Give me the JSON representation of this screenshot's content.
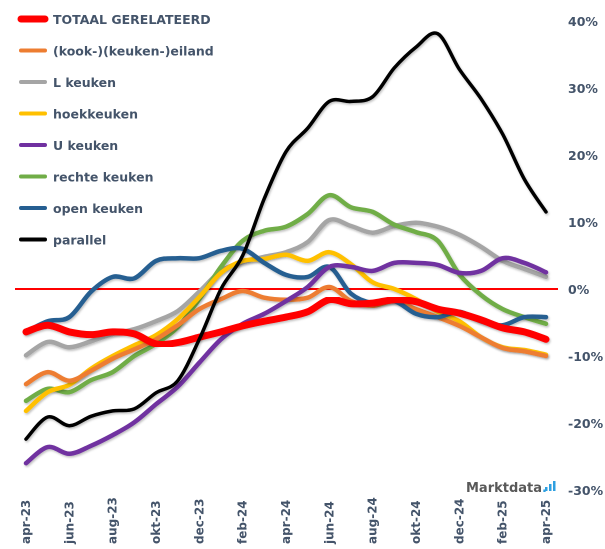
{
  "chart_data": {
    "type": "line",
    "title": "",
    "xlabel": "",
    "ylabel": "",
    "ylim": [
      -30,
      40
    ],
    "y_axis_side": "right",
    "yticks": [
      "40%",
      "30%",
      "20%",
      "10%",
      "0%",
      "-10%",
      "-20%",
      "-30%"
    ],
    "ytick_values": [
      40,
      30,
      20,
      10,
      0,
      -10,
      -20,
      -30
    ],
    "x": [
      "apr-23",
      "mei-23",
      "jun-23",
      "jul-23",
      "aug-23",
      "sep-23",
      "okt-23",
      "nov-23",
      "dec-23",
      "jan-24",
      "feb-24",
      "mrt-24",
      "apr-24",
      "mei-24",
      "jun-24",
      "jul-24",
      "aug-24",
      "sep-24",
      "okt-24",
      "nov-24",
      "dec-24",
      "jan-25",
      "feb-25",
      "mrt-25",
      "apr-25"
    ],
    "xtick_labels": [
      "apr-23",
      "jun-23",
      "aug-23",
      "okt-23",
      "dec-23",
      "feb-24",
      "apr-24",
      "jun-24",
      "aug-24",
      "okt-24",
      "dec-24",
      "feb-25",
      "apr-25"
    ],
    "xtick_indices": [
      0,
      2,
      4,
      6,
      8,
      10,
      12,
      14,
      16,
      18,
      20,
      22,
      24
    ],
    "reference_line": {
      "value": 0,
      "color": "#ff0000"
    },
    "grid": false,
    "legend_position": "top-left",
    "series": [
      {
        "name": "TOTAAL GERELATEERD",
        "color": "#ff0000",
        "emphasis": true,
        "values": [
          -6.4,
          -5.4,
          -6.4,
          -6.8,
          -6.4,
          -6.7,
          -8.2,
          -8.0,
          -7.2,
          -6.4,
          -5.5,
          -4.8,
          -4.2,
          -3.4,
          -1.6,
          -2.2,
          -2.1,
          -1.6,
          -1.9,
          -3.0,
          -3.6,
          -4.6,
          -5.8,
          -6.4,
          -7.5
        ]
      },
      {
        "name": "(kook-)(keuken-)eiland",
        "color": "#ed7d31",
        "values": [
          -14.2,
          -12.4,
          -13.7,
          -12.2,
          -10.4,
          -9.0,
          -7.5,
          -5.4,
          -3.0,
          -1.5,
          -0.3,
          -1.3,
          -1.6,
          -1.3,
          0.3,
          -1.8,
          -2.5,
          -1.8,
          -3.0,
          -4.2,
          -5.5,
          -7.2,
          -8.8,
          -9.3,
          -10.0
        ]
      },
      {
        "name": "L keuken",
        "color": "#a5a5a5",
        "values": [
          -9.9,
          -7.9,
          -8.7,
          -7.8,
          -6.7,
          -6.0,
          -4.8,
          -3.3,
          -0.4,
          2.7,
          4.0,
          4.8,
          5.5,
          7.0,
          10.3,
          9.4,
          8.4,
          9.4,
          9.9,
          9.3,
          8.1,
          6.3,
          4.2,
          3.0,
          1.8
        ]
      },
      {
        "name": "hoekkeuken",
        "color": "#ffc000",
        "values": [
          -18.2,
          -15.4,
          -14.3,
          -11.9,
          -10.0,
          -8.4,
          -6.9,
          -4.5,
          -1.2,
          2.4,
          4.2,
          4.5,
          5.1,
          4.2,
          5.5,
          3.7,
          1.0,
          0.0,
          -1.5,
          -3.4,
          -4.8,
          -7.2,
          -8.7,
          -9.1,
          -9.8
        ]
      },
      {
        "name": "U keuken",
        "color": "#7030a0",
        "values": [
          -26.0,
          -23.6,
          -24.6,
          -23.4,
          -21.8,
          -19.9,
          -17.2,
          -14.6,
          -11.0,
          -7.5,
          -5.2,
          -3.7,
          -1.8,
          0.3,
          3.3,
          3.3,
          2.7,
          3.9,
          3.9,
          3.6,
          2.4,
          2.7,
          4.6,
          3.9,
          2.5
        ]
      },
      {
        "name": "rechte keuken",
        "color": "#70ad47",
        "values": [
          -16.7,
          -14.9,
          -15.4,
          -13.6,
          -12.4,
          -10.0,
          -8.2,
          -5.7,
          -1.5,
          3.3,
          7.2,
          8.7,
          9.3,
          11.2,
          14.0,
          12.2,
          11.5,
          9.6,
          8.5,
          7.2,
          2.2,
          -0.9,
          -3.0,
          -4.2,
          -5.2
        ]
      },
      {
        "name": "open keuken",
        "color": "#255e91",
        "values": [
          -6.4,
          -4.8,
          -4.2,
          -0.4,
          1.8,
          1.6,
          4.2,
          4.6,
          4.6,
          5.7,
          6.0,
          3.9,
          2.1,
          1.8,
          3.3,
          -0.7,
          -2.1,
          -1.8,
          -3.7,
          -4.2,
          -3.4,
          -4.8,
          -5.4,
          -4.2,
          -4.2
        ]
      },
      {
        "name": "parallel",
        "color": "#000000",
        "values": [
          -22.4,
          -19.1,
          -20.4,
          -19.0,
          -18.2,
          -17.9,
          -15.5,
          -13.7,
          -7.5,
          0.0,
          5.0,
          13.5,
          20.5,
          24.0,
          28.0,
          28.0,
          28.7,
          33.0,
          36.1,
          38.1,
          32.8,
          28.4,
          23.1,
          16.4,
          11.5
        ]
      }
    ]
  },
  "branding": {
    "name": "Marktdata",
    "dot": ".",
    "icon": "bar-chart-icon",
    "text_color": "#595959",
    "accent_color": "#2e9fe0"
  },
  "colors": {
    "axis_text": "#44546a",
    "background": "#ffffff"
  }
}
